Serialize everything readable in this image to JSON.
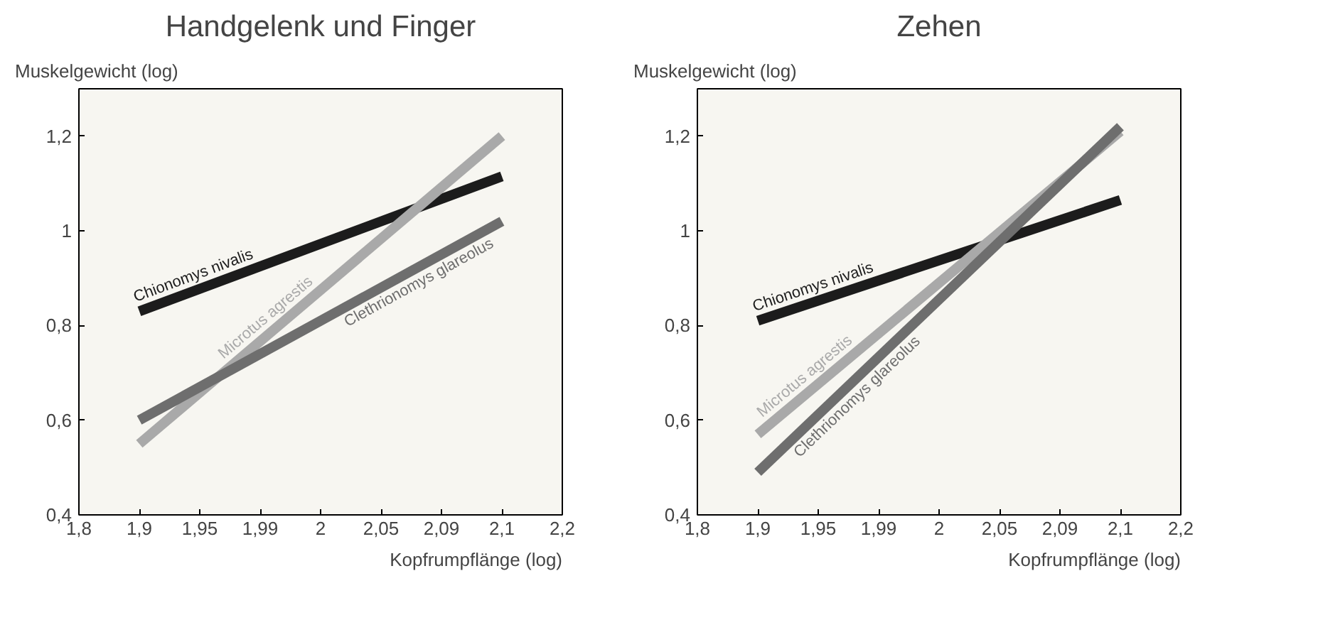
{
  "chart_data": [
    {
      "type": "line",
      "title": "Handgelenk und Finger",
      "ylabel": "Muskelgewicht (log)",
      "xlabel": "Kopfrumpflänge (log)",
      "categories": [
        "1,8",
        "1,9",
        "1,95",
        "1,99",
        "2",
        "2,05",
        "2,09",
        "2,1",
        "2,2"
      ],
      "ylim": [
        0.4,
        1.3
      ],
      "yticks": [
        {
          "value": 0.4,
          "label": "0,4"
        },
        {
          "value": 0.6,
          "label": "0,6"
        },
        {
          "value": 0.8,
          "label": "0,8"
        },
        {
          "value": 1,
          "label": "1"
        },
        {
          "value": 1.2,
          "label": "1,2"
        }
      ],
      "series": [
        {
          "name": "Chionomys nivalis",
          "color": "#1c1c1c",
          "x": [
            "1,9",
            "2,1"
          ],
          "values": [
            0.83,
            1.115
          ]
        },
        {
          "name": "Microtus agrestis",
          "color": "#a9a9a9",
          "x": [
            "1,9",
            "2,1"
          ],
          "values": [
            0.55,
            1.2
          ]
        },
        {
          "name": "Clethrionomys glareolus",
          "color": "#6e6e6e",
          "x": [
            "1,9",
            "2,1"
          ],
          "values": [
            0.6,
            1.02
          ]
        }
      ],
      "grid": false,
      "legend": false
    },
    {
      "type": "line",
      "title": "Zehen",
      "ylabel": "Muskelgewicht (log)",
      "xlabel": "Kopfrumpflänge (log)",
      "categories": [
        "1,8",
        "1,9",
        "1,95",
        "1,99",
        "2",
        "2,05",
        "2,09",
        "2,1",
        "2,2"
      ],
      "ylim": [
        0.4,
        1.3
      ],
      "yticks": [
        {
          "value": 0.4,
          "label": "0,4"
        },
        {
          "value": 0.6,
          "label": "0,6"
        },
        {
          "value": 0.8,
          "label": "0,8"
        },
        {
          "value": 1,
          "label": "1"
        },
        {
          "value": 1.2,
          "label": "1,2"
        }
      ],
      "series": [
        {
          "name": "Chionomys nivalis",
          "color": "#1c1c1c",
          "x": [
            "1,9",
            "2,1"
          ],
          "values": [
            0.81,
            1.065
          ]
        },
        {
          "name": "Microtus agrestis",
          "color": "#a9a9a9",
          "x": [
            "1,9",
            "2,1"
          ],
          "values": [
            0.57,
            1.21
          ]
        },
        {
          "name": "Clethrionomys glareolus",
          "color": "#6e6e6e",
          "x": [
            "1,9",
            "2,1"
          ],
          "values": [
            0.49,
            1.22
          ]
        }
      ],
      "grid": false,
      "legend": false
    }
  ]
}
